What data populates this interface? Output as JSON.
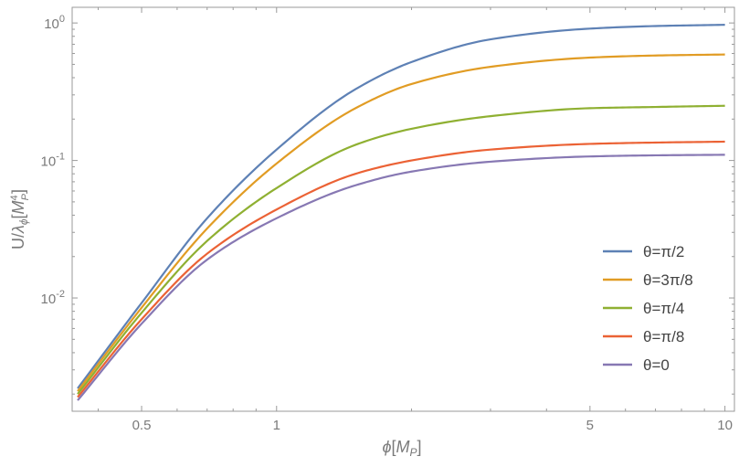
{
  "chart_data": {
    "type": "line",
    "x_scale": "log",
    "y_scale": "log",
    "xlim": [
      0.35,
      10.5
    ],
    "ylim": [
      0.0015,
      1.3
    ],
    "xlabel": "ϕ[M_P]",
    "ylabel": "U/λ_ϕ[M_P^4]",
    "x_ticks": [
      {
        "value": 0.5,
        "label": "0.5"
      },
      {
        "value": 1,
        "label": "1"
      },
      {
        "value": 5,
        "label": "5"
      },
      {
        "value": 10,
        "label": "10"
      }
    ],
    "y_ticks": [
      {
        "value": 1,
        "base": "10",
        "exp": "0"
      },
      {
        "value": 0.1,
        "base": "10",
        "exp": "-1"
      },
      {
        "value": 0.01,
        "base": "10",
        "exp": "-2"
      }
    ],
    "legend_position": "right",
    "series": [
      {
        "name": "θ=π/2",
        "color": "#5e81b5",
        "x": [
          0.36,
          0.5,
          0.7,
          1.0,
          1.5,
          2.0,
          3.0,
          5.0,
          7.0,
          10.0
        ],
        "y": [
          0.0022,
          0.0092,
          0.038,
          0.12,
          0.33,
          0.52,
          0.76,
          0.91,
          0.95,
          0.97
        ]
      },
      {
        "name": "θ=3π/8",
        "color": "#e19c24",
        "x": [
          0.36,
          0.5,
          0.7,
          1.0,
          1.5,
          2.0,
          3.0,
          5.0,
          7.0,
          10.0
        ],
        "y": [
          0.0021,
          0.0085,
          0.032,
          0.095,
          0.24,
          0.36,
          0.48,
          0.56,
          0.58,
          0.59
        ]
      },
      {
        "name": "θ=π/4",
        "color": "#8fb032",
        "x": [
          0.36,
          0.5,
          0.7,
          1.0,
          1.5,
          2.0,
          3.0,
          5.0,
          7.0,
          10.0
        ],
        "y": [
          0.002,
          0.0078,
          0.026,
          0.063,
          0.13,
          0.17,
          0.21,
          0.24,
          0.245,
          0.25
        ]
      },
      {
        "name": "θ=π/8",
        "color": "#eb6235",
        "x": [
          0.36,
          0.5,
          0.7,
          1.0,
          1.5,
          2.0,
          3.0,
          5.0,
          7.0,
          10.0
        ],
        "y": [
          0.0019,
          0.007,
          0.021,
          0.044,
          0.08,
          0.1,
          0.12,
          0.132,
          0.135,
          0.137
        ]
      },
      {
        "name": "θ=0",
        "color": "#8778b3",
        "x": [
          0.36,
          0.5,
          0.7,
          1.0,
          1.5,
          2.0,
          3.0,
          5.0,
          7.0,
          10.0
        ],
        "y": [
          0.0018,
          0.0065,
          0.019,
          0.038,
          0.066,
          0.083,
          0.098,
          0.107,
          0.109,
          0.11
        ]
      }
    ]
  }
}
